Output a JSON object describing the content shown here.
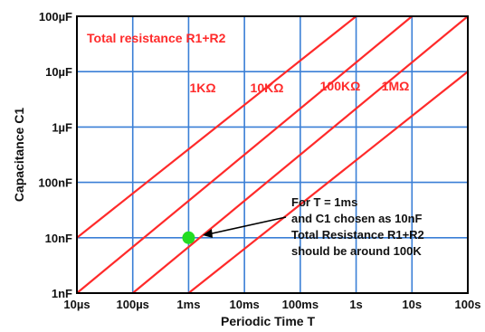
{
  "chart_data": {
    "type": "line",
    "title": "",
    "xlabel": "Periodic Time T",
    "ylabel": "Capacitance C1",
    "x_scale": "log",
    "y_scale": "log",
    "xlim": [
      "10µs",
      "100s"
    ],
    "ylim": [
      "1nF",
      "100µF"
    ],
    "x_ticks": [
      "10µs",
      "100µs",
      "1ms",
      "10ms",
      "100ms",
      "1s",
      "10s",
      "100s"
    ],
    "y_ticks": [
      "1nF",
      "10nF",
      "100nF",
      "1µF",
      "10µF",
      "100µF"
    ],
    "grid": true,
    "legend_text": "Total resistance R1+R2",
    "series": [
      {
        "name": "1KΩ",
        "points": [
          [
            "10µs",
            "10nF"
          ],
          [
            "1s",
            "100µF"
          ]
        ]
      },
      {
        "name": "10KΩ",
        "points": [
          [
            "10µs",
            "1nF"
          ],
          [
            "10s",
            "100µF"
          ]
        ]
      },
      {
        "name": "100KΩ",
        "points": [
          [
            "100µs",
            "1nF"
          ],
          [
            "100s",
            "100µF"
          ]
        ]
      },
      {
        "name": "1MΩ",
        "points": [
          [
            "1ms",
            "1nF"
          ],
          [
            "100s",
            "10µF"
          ]
        ]
      }
    ],
    "marker": {
      "x": "1ms",
      "y": "10nF",
      "color": "#22dd22"
    },
    "annotation": [
      "For T = 1ms",
      "and C1 chosen as 10nF",
      "Total Resistance R1+R2",
      "should be around 100K"
    ],
    "colors": {
      "series": "#ff2a2a",
      "grid": "#3a7fd6",
      "frame": "#000000",
      "marker": "#22dd22",
      "arrow": "#000000"
    }
  }
}
